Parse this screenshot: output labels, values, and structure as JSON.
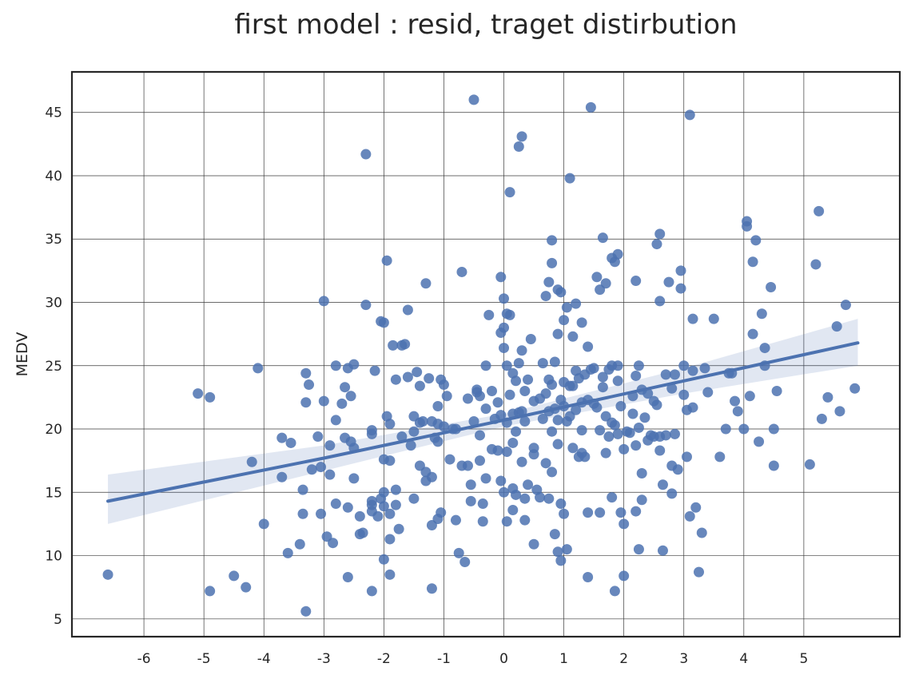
{
  "chart_data": {
    "type": "scatter",
    "title": "first model : resid, traget distirbution",
    "xlabel": "",
    "ylabel": "MEDV",
    "xlim": [
      -7.2,
      6.6
    ],
    "ylim": [
      3.6,
      48.2
    ],
    "xticks": [
      -6,
      -5,
      -4,
      -3,
      -2,
      -1,
      0,
      1,
      2,
      3,
      4,
      5
    ],
    "yticks": [
      5,
      10,
      15,
      20,
      25,
      30,
      35,
      40,
      45
    ],
    "grid": true,
    "colors": {
      "points": "#4c72b0",
      "line": "#4c72b0",
      "band": "#4c72b0"
    },
    "regression": {
      "x": [
        -6.6,
        -3.0,
        0.0,
        3.0,
        5.9
      ],
      "y": [
        14.3,
        17.7,
        20.7,
        23.8,
        26.8
      ],
      "ci_lower": [
        12.5,
        16.7,
        20.2,
        22.8,
        25.0
      ],
      "ci_upper": [
        16.4,
        18.7,
        21.2,
        24.8,
        28.7
      ]
    },
    "points": [
      [
        -6.6,
        8.5
      ],
      [
        -5.1,
        22.8
      ],
      [
        -4.9,
        7.2
      ],
      [
        -4.9,
        22.5
      ],
      [
        -4.5,
        8.4
      ],
      [
        -4.3,
        7.5
      ],
      [
        -4.2,
        17.4
      ],
      [
        -4.1,
        24.8
      ],
      [
        -4.0,
        12.5
      ],
      [
        -3.7,
        19.3
      ],
      [
        -3.7,
        16.2
      ],
      [
        -3.6,
        10.2
      ],
      [
        -3.55,
        18.9
      ],
      [
        -3.4,
        10.9
      ],
      [
        -3.35,
        13.3
      ],
      [
        -3.35,
        15.2
      ],
      [
        -3.3,
        5.6
      ],
      [
        -3.3,
        22.1
      ],
      [
        -3.3,
        24.4
      ],
      [
        -3.25,
        23.5
      ],
      [
        -3.2,
        16.8
      ],
      [
        -3.1,
        19.4
      ],
      [
        -3.05,
        17.0
      ],
      [
        -3.05,
        13.3
      ],
      [
        -3.0,
        30.1
      ],
      [
        -3.0,
        22.2
      ],
      [
        -2.95,
        11.5
      ],
      [
        -2.9,
        18.7
      ],
      [
        -2.9,
        16.4
      ],
      [
        -2.85,
        11.0
      ],
      [
        -2.8,
        25.0
      ],
      [
        -2.8,
        20.7
      ],
      [
        -2.8,
        14.1
      ],
      [
        -2.7,
        22.0
      ],
      [
        -2.65,
        19.3
      ],
      [
        -2.65,
        23.3
      ],
      [
        -2.6,
        24.8
      ],
      [
        -2.6,
        13.8
      ],
      [
        -2.6,
        8.3
      ],
      [
        -2.55,
        22.6
      ],
      [
        -2.55,
        19.0
      ],
      [
        -2.5,
        25.1
      ],
      [
        -2.5,
        18.5
      ],
      [
        -2.5,
        16.1
      ],
      [
        -2.4,
        13.1
      ],
      [
        -2.4,
        11.7
      ],
      [
        -2.35,
        11.8
      ],
      [
        -2.3,
        29.8
      ],
      [
        -2.3,
        41.7
      ],
      [
        -2.2,
        19.6
      ],
      [
        -2.2,
        19.9
      ],
      [
        -2.2,
        14.3
      ],
      [
        -2.2,
        14.0
      ],
      [
        -2.2,
        13.5
      ],
      [
        -2.2,
        7.2
      ],
      [
        -2.15,
        24.6
      ],
      [
        -2.1,
        13.1
      ],
      [
        -2.05,
        28.5
      ],
      [
        -2.05,
        14.5
      ],
      [
        -2.0,
        28.4
      ],
      [
        -2.0,
        17.6
      ],
      [
        -2.0,
        15.0
      ],
      [
        -2.0,
        13.9
      ],
      [
        -2.0,
        9.7
      ],
      [
        -1.95,
        33.3
      ],
      [
        -1.95,
        21.0
      ],
      [
        -1.9,
        20.4
      ],
      [
        -1.9,
        17.5
      ],
      [
        -1.9,
        13.3
      ],
      [
        -1.9,
        11.3
      ],
      [
        -1.9,
        8.5
      ],
      [
        -1.85,
        26.6
      ],
      [
        -1.8,
        23.9
      ],
      [
        -1.8,
        15.2
      ],
      [
        -1.8,
        14.0
      ],
      [
        -1.75,
        12.1
      ],
      [
        -1.7,
        26.6
      ],
      [
        -1.7,
        19.4
      ],
      [
        -1.65,
        26.7
      ],
      [
        -1.6,
        29.4
      ],
      [
        -1.6,
        24.1
      ],
      [
        -1.55,
        18.7
      ],
      [
        -1.5,
        21.0
      ],
      [
        -1.5,
        14.5
      ],
      [
        -1.5,
        19.8
      ],
      [
        -1.45,
        24.5
      ],
      [
        -1.4,
        20.5
      ],
      [
        -1.4,
        23.4
      ],
      [
        -1.4,
        17.1
      ],
      [
        -1.35,
        20.6
      ],
      [
        -1.3,
        16.6
      ],
      [
        -1.3,
        15.9
      ],
      [
        -1.3,
        31.5
      ],
      [
        -1.25,
        24.0
      ],
      [
        -1.2,
        20.6
      ],
      [
        -1.2,
        16.2
      ],
      [
        -1.2,
        12.4
      ],
      [
        -1.2,
        7.4
      ],
      [
        -1.15,
        19.3
      ],
      [
        -1.1,
        21.8
      ],
      [
        -1.1,
        20.4
      ],
      [
        -1.1,
        19.0
      ],
      [
        -1.1,
        12.9
      ],
      [
        -1.05,
        23.9
      ],
      [
        -1.05,
        13.4
      ],
      [
        -1.0,
        23.5
      ],
      [
        -1.0,
        20.2
      ],
      [
        -0.95,
        22.6
      ],
      [
        -0.9,
        17.6
      ],
      [
        -0.85,
        20.0
      ],
      [
        -0.8,
        20.0
      ],
      [
        -0.8,
        12.8
      ],
      [
        -0.75,
        10.2
      ],
      [
        -0.7,
        32.4
      ],
      [
        -0.7,
        17.1
      ],
      [
        -0.65,
        9.5
      ],
      [
        -0.6,
        22.4
      ],
      [
        -0.6,
        17.1
      ],
      [
        -0.55,
        14.3
      ],
      [
        -0.55,
        15.6
      ],
      [
        -0.5,
        46.0
      ],
      [
        -0.5,
        20.6
      ],
      [
        -0.45,
        23.1
      ],
      [
        -0.45,
        22.9
      ],
      [
        -0.4,
        22.6
      ],
      [
        -0.4,
        19.5
      ],
      [
        -0.4,
        17.5
      ],
      [
        -0.35,
        14.1
      ],
      [
        -0.35,
        12.7
      ],
      [
        -0.3,
        25.0
      ],
      [
        -0.3,
        21.6
      ],
      [
        -0.3,
        16.1
      ],
      [
        -0.25,
        29.0
      ],
      [
        -0.2,
        23.0
      ],
      [
        -0.2,
        18.4
      ],
      [
        -0.15,
        20.8
      ],
      [
        -0.1,
        22.1
      ],
      [
        -0.1,
        18.3
      ],
      [
        -0.05,
        32.0
      ],
      [
        -0.05,
        27.6
      ],
      [
        -0.05,
        21.1
      ],
      [
        -0.05,
        15.9
      ],
      [
        0.0,
        30.3
      ],
      [
        0.0,
        28.0
      ],
      [
        0.0,
        26.4
      ],
      [
        0.0,
        15.0
      ],
      [
        0.05,
        29.1
      ],
      [
        0.05,
        25.0
      ],
      [
        0.05,
        20.5
      ],
      [
        0.05,
        18.2
      ],
      [
        0.05,
        12.7
      ],
      [
        0.1,
        38.7
      ],
      [
        0.1,
        29.0
      ],
      [
        0.1,
        22.7
      ],
      [
        0.15,
        24.4
      ],
      [
        0.15,
        21.2
      ],
      [
        0.15,
        18.9
      ],
      [
        0.15,
        15.3
      ],
      [
        0.15,
        13.6
      ],
      [
        0.2,
        23.8
      ],
      [
        0.2,
        19.8
      ],
      [
        0.2,
        14.8
      ],
      [
        0.25,
        42.3
      ],
      [
        0.25,
        25.2
      ],
      [
        0.25,
        21.3
      ],
      [
        0.3,
        43.1
      ],
      [
        0.3,
        26.2
      ],
      [
        0.3,
        21.4
      ],
      [
        0.3,
        17.4
      ],
      [
        0.35,
        23.0
      ],
      [
        0.35,
        20.6
      ],
      [
        0.35,
        14.5
      ],
      [
        0.35,
        12.8
      ],
      [
        0.4,
        23.9
      ],
      [
        0.4,
        15.6
      ],
      [
        0.45,
        27.1
      ],
      [
        0.5,
        22.2
      ],
      [
        0.5,
        18.5
      ],
      [
        0.5,
        18.0
      ],
      [
        0.5,
        10.9
      ],
      [
        0.55,
        15.2
      ],
      [
        0.6,
        22.4
      ],
      [
        0.6,
        14.6
      ],
      [
        0.65,
        25.2
      ],
      [
        0.65,
        20.8
      ],
      [
        0.7,
        30.5
      ],
      [
        0.7,
        22.8
      ],
      [
        0.7,
        17.3
      ],
      [
        0.75,
        31.6
      ],
      [
        0.75,
        23.9
      ],
      [
        0.75,
        21.4
      ],
      [
        0.75,
        14.5
      ],
      [
        0.8,
        34.9
      ],
      [
        0.8,
        33.1
      ],
      [
        0.8,
        23.5
      ],
      [
        0.8,
        19.8
      ],
      [
        0.8,
        16.6
      ],
      [
        0.85,
        25.3
      ],
      [
        0.85,
        21.6
      ],
      [
        0.85,
        11.7
      ],
      [
        0.9,
        31.0
      ],
      [
        0.9,
        27.5
      ],
      [
        0.9,
        20.7
      ],
      [
        0.9,
        18.8
      ],
      [
        0.9,
        10.3
      ],
      [
        0.95,
        30.8
      ],
      [
        0.95,
        22.3
      ],
      [
        0.95,
        14.1
      ],
      [
        0.95,
        9.6
      ],
      [
        1.0,
        28.6
      ],
      [
        1.0,
        23.7
      ],
      [
        1.0,
        21.8
      ],
      [
        1.0,
        13.3
      ],
      [
        1.05,
        29.6
      ],
      [
        1.05,
        20.6
      ],
      [
        1.05,
        10.5
      ],
      [
        1.1,
        39.8
      ],
      [
        1.1,
        23.4
      ],
      [
        1.1,
        21.0
      ],
      [
        1.15,
        27.3
      ],
      [
        1.15,
        23.4
      ],
      [
        1.15,
        18.5
      ],
      [
        1.2,
        29.9
      ],
      [
        1.2,
        24.6
      ],
      [
        1.2,
        21.5
      ],
      [
        1.25,
        24.0
      ],
      [
        1.25,
        17.8
      ],
      [
        1.3,
        28.4
      ],
      [
        1.3,
        22.1
      ],
      [
        1.3,
        19.9
      ],
      [
        1.3,
        18.1
      ],
      [
        1.35,
        24.3
      ],
      [
        1.35,
        17.8
      ],
      [
        1.4,
        26.5
      ],
      [
        1.4,
        22.3
      ],
      [
        1.4,
        13.4
      ],
      [
        1.4,
        8.3
      ],
      [
        1.45,
        45.4
      ],
      [
        1.45,
        24.7
      ],
      [
        1.5,
        24.8
      ],
      [
        1.5,
        22.0
      ],
      [
        1.55,
        32.0
      ],
      [
        1.55,
        21.7
      ],
      [
        1.6,
        31.0
      ],
      [
        1.6,
        19.9
      ],
      [
        1.6,
        13.4
      ],
      [
        1.65,
        35.1
      ],
      [
        1.65,
        24.1
      ],
      [
        1.65,
        23.3
      ],
      [
        1.7,
        31.5
      ],
      [
        1.7,
        21.0
      ],
      [
        1.7,
        18.1
      ],
      [
        1.75,
        24.7
      ],
      [
        1.75,
        19.4
      ],
      [
        1.8,
        33.5
      ],
      [
        1.8,
        25.0
      ],
      [
        1.8,
        20.5
      ],
      [
        1.8,
        14.6
      ],
      [
        1.85,
        33.2
      ],
      [
        1.85,
        20.3
      ],
      [
        1.85,
        7.2
      ],
      [
        1.9,
        33.8
      ],
      [
        1.9,
        25.0
      ],
      [
        1.9,
        23.8
      ],
      [
        1.9,
        19.6
      ],
      [
        1.95,
        21.8
      ],
      [
        1.95,
        13.4
      ],
      [
        2.0,
        18.4
      ],
      [
        2.0,
        12.5
      ],
      [
        2.0,
        8.4
      ],
      [
        2.05,
        19.8
      ],
      [
        2.1,
        19.7
      ],
      [
        2.15,
        22.6
      ],
      [
        2.15,
        21.2
      ],
      [
        2.2,
        31.7
      ],
      [
        2.2,
        24.2
      ],
      [
        2.2,
        18.7
      ],
      [
        2.2,
        13.5
      ],
      [
        2.25,
        25.0
      ],
      [
        2.25,
        20.1
      ],
      [
        2.25,
        10.5
      ],
      [
        2.3,
        23.1
      ],
      [
        2.3,
        16.5
      ],
      [
        2.3,
        14.4
      ],
      [
        2.35,
        20.9
      ],
      [
        2.4,
        22.8
      ],
      [
        2.4,
        19.1
      ],
      [
        2.45,
        19.5
      ],
      [
        2.5,
        22.2
      ],
      [
        2.5,
        19.4
      ],
      [
        2.55,
        34.6
      ],
      [
        2.55,
        21.9
      ],
      [
        2.6,
        35.4
      ],
      [
        2.6,
        30.1
      ],
      [
        2.6,
        19.4
      ],
      [
        2.6,
        18.3
      ],
      [
        2.65,
        15.6
      ],
      [
        2.65,
        10.4
      ],
      [
        2.7,
        24.3
      ],
      [
        2.7,
        19.5
      ],
      [
        2.75,
        31.6
      ],
      [
        2.8,
        23.2
      ],
      [
        2.8,
        17.1
      ],
      [
        2.8,
        14.9
      ],
      [
        2.85,
        24.3
      ],
      [
        2.85,
        19.6
      ],
      [
        2.9,
        16.8
      ],
      [
        2.95,
        32.5
      ],
      [
        2.95,
        31.1
      ],
      [
        3.0,
        25.0
      ],
      [
        3.0,
        22.7
      ],
      [
        3.05,
        21.5
      ],
      [
        3.05,
        17.8
      ],
      [
        3.1,
        13.1
      ],
      [
        3.1,
        44.8
      ],
      [
        3.15,
        28.7
      ],
      [
        3.15,
        24.6
      ],
      [
        3.15,
        21.7
      ],
      [
        3.2,
        13.8
      ],
      [
        3.25,
        8.7
      ],
      [
        3.3,
        11.8
      ],
      [
        3.35,
        24.8
      ],
      [
        3.4,
        22.9
      ],
      [
        3.5,
        28.7
      ],
      [
        3.6,
        17.8
      ],
      [
        3.7,
        20.0
      ],
      [
        3.75,
        24.4
      ],
      [
        3.8,
        24.4
      ],
      [
        3.85,
        22.2
      ],
      [
        3.9,
        21.4
      ],
      [
        4.0,
        20.0
      ],
      [
        4.05,
        36.0
      ],
      [
        4.05,
        36.4
      ],
      [
        4.1,
        22.6
      ],
      [
        4.15,
        27.5
      ],
      [
        4.15,
        33.2
      ],
      [
        4.2,
        34.9
      ],
      [
        4.25,
        19.0
      ],
      [
        4.3,
        29.1
      ],
      [
        4.35,
        26.4
      ],
      [
        4.35,
        25.0
      ],
      [
        4.45,
        31.2
      ],
      [
        4.5,
        20.0
      ],
      [
        4.5,
        17.1
      ],
      [
        4.55,
        23.0
      ],
      [
        5.1,
        17.2
      ],
      [
        5.2,
        33.0
      ],
      [
        5.25,
        37.2
      ],
      [
        5.3,
        20.8
      ],
      [
        5.4,
        22.5
      ],
      [
        5.55,
        28.1
      ],
      [
        5.6,
        21.4
      ],
      [
        5.7,
        29.8
      ],
      [
        5.85,
        23.2
      ]
    ]
  }
}
